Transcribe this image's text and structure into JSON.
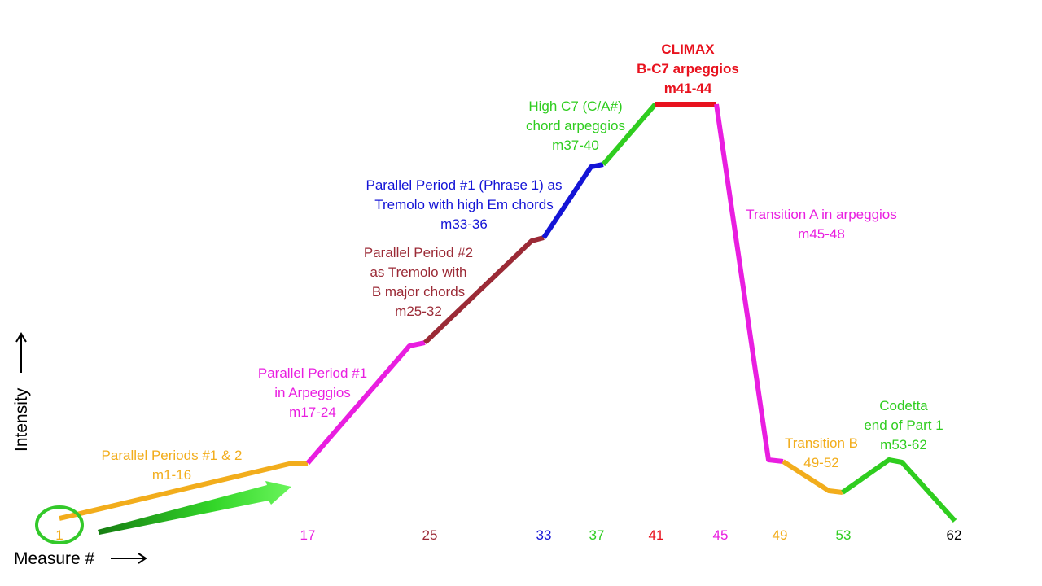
{
  "colors": {
    "orange": "#f2ad1c",
    "magenta": "#e91ee0",
    "maroon": "#9b2a36",
    "blue": "#1414d6",
    "green": "#2fcd1f",
    "red": "#e8121e",
    "black": "#000000"
  },
  "axes": {
    "x_label": "Measure #",
    "y_label": "Intensity"
  },
  "ticks": [
    {
      "label": "1",
      "color": "orange"
    },
    {
      "label": "17",
      "color": "magenta"
    },
    {
      "label": "25",
      "color": "maroon"
    },
    {
      "label": "33",
      "color": "blue"
    },
    {
      "label": "37",
      "color": "green"
    },
    {
      "label": "41",
      "color": "red"
    },
    {
      "label": "45",
      "color": "magenta"
    },
    {
      "label": "49",
      "color": "orange"
    },
    {
      "label": "53",
      "color": "green"
    },
    {
      "label": "62",
      "color": "black"
    }
  ],
  "sections": [
    {
      "color": "orange",
      "lines": [
        "Parallel Periods #1 & 2",
        "m1-16"
      ]
    },
    {
      "color": "magenta",
      "lines": [
        "Parallel Period #1",
        "in Arpeggios",
        "m17-24"
      ]
    },
    {
      "color": "maroon",
      "lines": [
        "Parallel Period #2",
        "as Tremolo with",
        "B major chords",
        "m25-32"
      ]
    },
    {
      "color": "blue",
      "lines": [
        "Parallel Period #1 (Phrase 1) as",
        "Tremolo with high Em chords",
        "m33-36"
      ]
    },
    {
      "color": "green",
      "lines": [
        "High C7 (C/A#)",
        "chord arpeggios",
        "m37-40"
      ]
    },
    {
      "color": "red",
      "lines": [
        "CLIMAX",
        "B-C7 arpeggios",
        "m41-44"
      ]
    },
    {
      "color": "magenta",
      "lines": [
        "Transition A in arpeggios",
        "m45-48"
      ]
    },
    {
      "color": "orange",
      "lines": [
        "Transition B",
        "49-52"
      ]
    },
    {
      "color": "green",
      "lines": [
        "Codetta",
        "end of Part 1",
        "m53-62"
      ]
    }
  ],
  "icons": {
    "start_marker": "circle-icon",
    "progress_arrow": "arrow-right-icon"
  }
}
